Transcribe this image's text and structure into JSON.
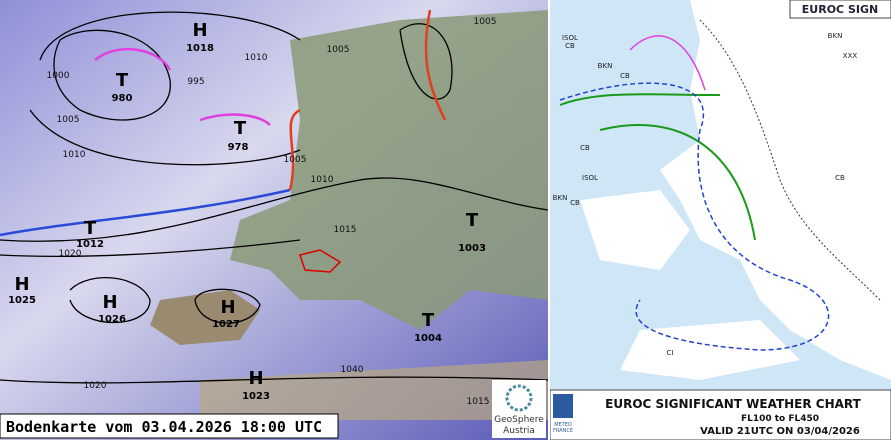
{
  "surface_map": {
    "caption": "Bodenkarte vom 03.04.2026 18:00 UTC",
    "logo": [
      "GeoSphere",
      "Austria"
    ],
    "centers": [
      {
        "kind": "H",
        "pressure": 1018
      },
      {
        "kind": "T",
        "pressure": 980
      },
      {
        "kind": "T",
        "pressure": 978
      },
      {
        "kind": "T",
        "pressure": 1012
      },
      {
        "kind": "H",
        "pressure": 1025
      },
      {
        "kind": "H",
        "pressure": 1026
      },
      {
        "kind": "H",
        "pressure": 1027
      },
      {
        "kind": "H",
        "pressure": 1023
      },
      {
        "kind": "T",
        "pressure": 1003
      },
      {
        "kind": "T",
        "pressure": 1004
      }
    ],
    "isobar_labels": [
      1000,
      1005,
      1010,
      995,
      1005,
      1010,
      1005,
      1005,
      1010,
      1015,
      1020,
      1040,
      1020,
      1015
    ]
  },
  "sigwx_chart": {
    "corner_title": "EUROC SIGN",
    "title": "EUROC SIGNIFICANT WEATHER CHART",
    "levels": "FL100 to FL450",
    "valid": "VALID 21UTC ON 03/04/2026",
    "issuer": [
      "METEO",
      "FRANCE"
    ],
    "tags": [
      "CB",
      "ISOL",
      "CB",
      "BKN",
      "CB",
      "ISOL",
      "CB",
      "BKN",
      "CI",
      "XXX",
      "BKN",
      "CB"
    ]
  }
}
